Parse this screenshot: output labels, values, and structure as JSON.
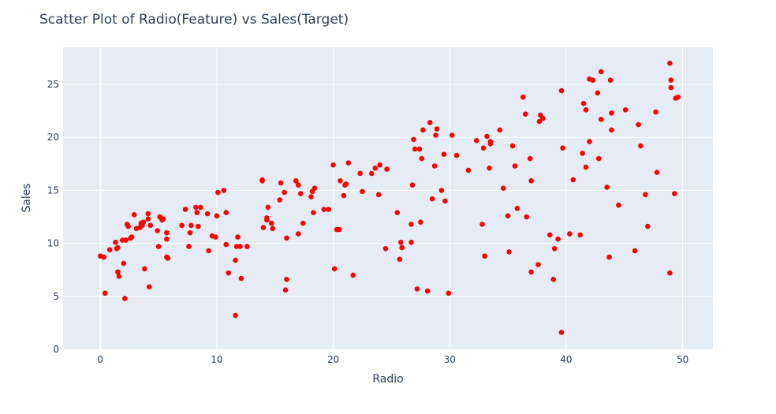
{
  "chart_data": {
    "type": "scatter",
    "title": "Scatter Plot of Radio(Feature) vs Sales(Target)",
    "xlabel": "Radio",
    "ylabel": "Sales",
    "xlim": [
      -3.2,
      52.6
    ],
    "ylim": [
      0,
      28.5
    ],
    "x_ticks": [
      0,
      10,
      20,
      30,
      40,
      50
    ],
    "y_ticks": [
      0,
      5,
      10,
      15,
      20,
      25
    ],
    "grid": true,
    "colors": {
      "marker": "#ff0000",
      "plot_bg": "#e5ecf6",
      "grid": "#ffffff",
      "text": "#2a3f5f"
    },
    "series": [
      {
        "marker": "circle",
        "points": [
          [
            0.0,
            8.8
          ],
          [
            0.3,
            8.7
          ],
          [
            0.4,
            5.3
          ],
          [
            0.8,
            9.4
          ],
          [
            1.3,
            10.1
          ],
          [
            1.4,
            9.5
          ],
          [
            1.5,
            9.6
          ],
          [
            1.5,
            7.3
          ],
          [
            1.6,
            6.9
          ],
          [
            1.9,
            10.3
          ],
          [
            2.0,
            8.1
          ],
          [
            2.1,
            4.8
          ],
          [
            2.2,
            10.3
          ],
          [
            2.3,
            11.8
          ],
          [
            2.4,
            11.6
          ],
          [
            2.6,
            10.5
          ],
          [
            2.7,
            10.6
          ],
          [
            2.9,
            12.7
          ],
          [
            3.1,
            11.4
          ],
          [
            3.4,
            11.5
          ],
          [
            3.5,
            11.9
          ],
          [
            3.6,
            11.7
          ],
          [
            3.7,
            12.0
          ],
          [
            3.8,
            7.6
          ],
          [
            4.1,
            12.8
          ],
          [
            4.1,
            12.3
          ],
          [
            4.2,
            5.9
          ],
          [
            4.3,
            11.7
          ],
          [
            4.9,
            11.2
          ],
          [
            5.0,
            9.7
          ],
          [
            5.1,
            12.5
          ],
          [
            5.3,
            12.2
          ],
          [
            5.4,
            12.3
          ],
          [
            5.7,
            8.7
          ],
          [
            5.7,
            10.4
          ],
          [
            5.7,
            11.0
          ],
          [
            5.8,
            8.6
          ],
          [
            7.0,
            11.7
          ],
          [
            7.3,
            13.2
          ],
          [
            7.6,
            9.7
          ],
          [
            7.7,
            11.0
          ],
          [
            7.8,
            11.7
          ],
          [
            8.2,
            13.4
          ],
          [
            8.3,
            12.9
          ],
          [
            8.4,
            11.6
          ],
          [
            8.6,
            13.4
          ],
          [
            9.2,
            12.8
          ],
          [
            9.3,
            9.3
          ],
          [
            9.6,
            10.7
          ],
          [
            9.9,
            10.6
          ],
          [
            10.0,
            12.6
          ],
          [
            10.1,
            14.8
          ],
          [
            10.6,
            15.0
          ],
          [
            10.8,
            12.9
          ],
          [
            10.8,
            9.9
          ],
          [
            11.0,
            7.2
          ],
          [
            11.6,
            8.4
          ],
          [
            11.6,
            3.2
          ],
          [
            11.7,
            9.7
          ],
          [
            11.8,
            10.6
          ],
          [
            12.0,
            9.7
          ],
          [
            12.1,
            6.7
          ],
          [
            12.6,
            9.7
          ],
          [
            13.9,
            16.0
          ],
          [
            13.9,
            15.9
          ],
          [
            14.0,
            11.5
          ],
          [
            14.3,
            12.2
          ],
          [
            14.3,
            12.4
          ],
          [
            14.4,
            13.4
          ],
          [
            14.7,
            11.9
          ],
          [
            14.8,
            11.4
          ],
          [
            15.4,
            14.1
          ],
          [
            15.5,
            15.7
          ],
          [
            15.8,
            14.8
          ],
          [
            15.9,
            5.6
          ],
          [
            16.0,
            6.6
          ],
          [
            16.0,
            10.5
          ],
          [
            16.8,
            15.9
          ],
          [
            17.0,
            15.5
          ],
          [
            17.0,
            10.9
          ],
          [
            17.2,
            14.7
          ],
          [
            17.4,
            11.9
          ],
          [
            18.1,
            14.4
          ],
          [
            18.2,
            14.9
          ],
          [
            18.3,
            12.9
          ],
          [
            18.4,
            15.2
          ],
          [
            19.2,
            13.2
          ],
          [
            19.6,
            13.2
          ],
          [
            20.0,
            17.4
          ],
          [
            20.1,
            7.6
          ],
          [
            20.3,
            11.3
          ],
          [
            20.5,
            11.3
          ],
          [
            20.6,
            15.9
          ],
          [
            20.9,
            14.5
          ],
          [
            21.0,
            15.5
          ],
          [
            21.1,
            15.6
          ],
          [
            21.3,
            17.6
          ],
          [
            21.7,
            7.0
          ],
          [
            22.3,
            16.6
          ],
          [
            22.5,
            14.9
          ],
          [
            23.3,
            16.6
          ],
          [
            23.6,
            17.1
          ],
          [
            23.9,
            14.6
          ],
          [
            24.0,
            17.4
          ],
          [
            24.5,
            9.5
          ],
          [
            24.6,
            17.0
          ],
          [
            25.5,
            12.9
          ],
          [
            25.7,
            8.5
          ],
          [
            25.8,
            10.1
          ],
          [
            25.9,
            9.6
          ],
          [
            26.7,
            11.8
          ],
          [
            26.7,
            10.1
          ],
          [
            26.8,
            15.5
          ],
          [
            26.9,
            19.8
          ],
          [
            27.0,
            18.9
          ],
          [
            27.2,
            5.7
          ],
          [
            27.4,
            18.9
          ],
          [
            27.5,
            12.0
          ],
          [
            27.6,
            18.0
          ],
          [
            27.7,
            20.7
          ],
          [
            28.1,
            5.5
          ],
          [
            28.3,
            21.4
          ],
          [
            28.5,
            14.2
          ],
          [
            28.7,
            17.3
          ],
          [
            28.8,
            20.2
          ],
          [
            28.9,
            20.8
          ],
          [
            29.3,
            15.0
          ],
          [
            29.5,
            18.4
          ],
          [
            29.6,
            14.0
          ],
          [
            29.9,
            5.3
          ],
          [
            30.2,
            20.2
          ],
          [
            30.6,
            18.3
          ],
          [
            31.6,
            16.9
          ],
          [
            32.3,
            19.7
          ],
          [
            32.8,
            11.8
          ],
          [
            32.9,
            19.0
          ],
          [
            33.0,
            8.8
          ],
          [
            33.2,
            20.1
          ],
          [
            33.4,
            17.1
          ],
          [
            33.5,
            19.6
          ],
          [
            33.5,
            19.4
          ],
          [
            34.3,
            20.7
          ],
          [
            34.6,
            15.2
          ],
          [
            35.0,
            12.6
          ],
          [
            35.1,
            9.2
          ],
          [
            35.4,
            19.2
          ],
          [
            35.6,
            17.3
          ],
          [
            35.8,
            13.3
          ],
          [
            36.3,
            23.8
          ],
          [
            36.5,
            22.2
          ],
          [
            36.6,
            12.5
          ],
          [
            36.9,
            18.0
          ],
          [
            37.0,
            15.9
          ],
          [
            37.0,
            7.3
          ],
          [
            37.6,
            8.0
          ],
          [
            37.7,
            21.5
          ],
          [
            37.8,
            22.1
          ],
          [
            38.0,
            21.8
          ],
          [
            38.6,
            10.8
          ],
          [
            38.9,
            6.6
          ],
          [
            39.0,
            9.5
          ],
          [
            39.3,
            10.4
          ],
          [
            39.6,
            1.6
          ],
          [
            39.6,
            24.4
          ],
          [
            39.7,
            19.0
          ],
          [
            40.3,
            10.9
          ],
          [
            40.6,
            16.0
          ],
          [
            41.2,
            10.8
          ],
          [
            41.4,
            18.5
          ],
          [
            41.5,
            23.2
          ],
          [
            41.7,
            22.6
          ],
          [
            41.7,
            17.2
          ],
          [
            42.0,
            19.6
          ],
          [
            42.0,
            25.5
          ],
          [
            42.3,
            25.4
          ],
          [
            42.7,
            24.2
          ],
          [
            42.8,
            18.0
          ],
          [
            43.0,
            21.7
          ],
          [
            43.0,
            26.2
          ],
          [
            43.5,
            15.3
          ],
          [
            43.7,
            8.7
          ],
          [
            43.8,
            25.4
          ],
          [
            43.9,
            22.3
          ],
          [
            43.9,
            20.7
          ],
          [
            44.5,
            13.6
          ],
          [
            45.1,
            22.6
          ],
          [
            45.9,
            9.3
          ],
          [
            46.2,
            21.2
          ],
          [
            46.4,
            19.2
          ],
          [
            46.8,
            14.6
          ],
          [
            47.0,
            11.6
          ],
          [
            47.7,
            22.4
          ],
          [
            47.8,
            16.7
          ],
          [
            48.9,
            27.0
          ],
          [
            48.9,
            7.2
          ],
          [
            49.0,
            25.4
          ],
          [
            49.0,
            24.7
          ],
          [
            49.3,
            14.7
          ],
          [
            49.4,
            23.7
          ],
          [
            49.6,
            23.8
          ]
        ]
      }
    ]
  }
}
